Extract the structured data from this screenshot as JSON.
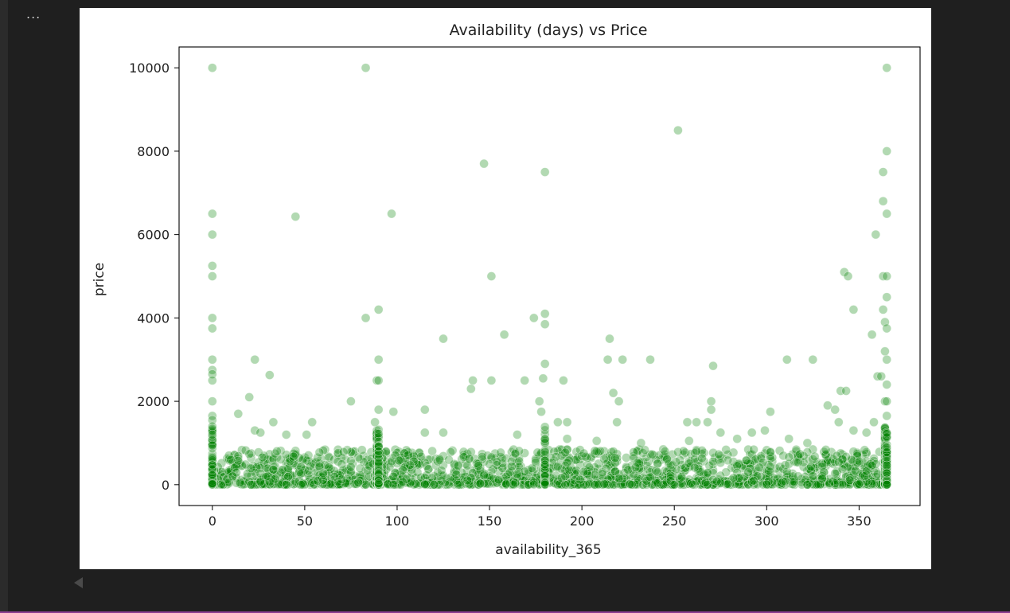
{
  "toolbar": {
    "more_label": "..."
  },
  "colors": {
    "marker": "#008000",
    "axis": "#000000",
    "panel_bg": "#ffffff",
    "app_bg": "#1f1f1f"
  },
  "chart_data": {
    "type": "scatter",
    "title": "Availability (days) vs Price",
    "xlabel": "availability_365",
    "ylabel": "price",
    "xlim": [
      -18,
      383
    ],
    "ylim": [
      -500,
      10500
    ],
    "xticks": [
      0,
      50,
      100,
      150,
      200,
      250,
      300,
      350
    ],
    "yticks": [
      0,
      2000,
      4000,
      6000,
      8000,
      10000
    ],
    "marker_color": "#008000",
    "marker_alpha": 0.3,
    "grid": false,
    "legend": "none",
    "outliers": [
      {
        "x": 0,
        "y": 10000
      },
      {
        "x": 83,
        "y": 10000
      },
      {
        "x": 365,
        "y": 10000
      },
      {
        "x": 252,
        "y": 8500
      },
      {
        "x": 365,
        "y": 8000
      },
      {
        "x": 147,
        "y": 7700
      },
      {
        "x": 180,
        "y": 7500
      },
      {
        "x": 363,
        "y": 7500
      },
      {
        "x": 363,
        "y": 6800
      },
      {
        "x": 0,
        "y": 6500
      },
      {
        "x": 97,
        "y": 6500
      },
      {
        "x": 365,
        "y": 6500
      },
      {
        "x": 45,
        "y": 6430
      },
      {
        "x": 0,
        "y": 6000
      },
      {
        "x": 359,
        "y": 6000
      },
      {
        "x": 0,
        "y": 5250
      },
      {
        "x": 0,
        "y": 5000
      },
      {
        "x": 151,
        "y": 5000
      },
      {
        "x": 342,
        "y": 5100
      },
      {
        "x": 344,
        "y": 5000
      },
      {
        "x": 363,
        "y": 5000
      },
      {
        "x": 365,
        "y": 5000
      },
      {
        "x": 365,
        "y": 4500
      },
      {
        "x": 90,
        "y": 4200
      },
      {
        "x": 347,
        "y": 4200
      },
      {
        "x": 363,
        "y": 4200
      },
      {
        "x": 0,
        "y": 4000
      },
      {
        "x": 83,
        "y": 4000
      },
      {
        "x": 174,
        "y": 4000
      },
      {
        "x": 180,
        "y": 4100
      },
      {
        "x": 180,
        "y": 3850
      },
      {
        "x": 364,
        "y": 3900
      },
      {
        "x": 0,
        "y": 3750
      },
      {
        "x": 365,
        "y": 3750
      },
      {
        "x": 158,
        "y": 3600
      },
      {
        "x": 357,
        "y": 3600
      },
      {
        "x": 125,
        "y": 3500
      },
      {
        "x": 215,
        "y": 3500
      },
      {
        "x": 0,
        "y": 3000
      },
      {
        "x": 23,
        "y": 3000
      },
      {
        "x": 90,
        "y": 3000
      },
      {
        "x": 214,
        "y": 3000
      },
      {
        "x": 222,
        "y": 3000
      },
      {
        "x": 237,
        "y": 3000
      },
      {
        "x": 311,
        "y": 3000
      },
      {
        "x": 325,
        "y": 3000
      },
      {
        "x": 365,
        "y": 3000
      },
      {
        "x": 364,
        "y": 3200
      },
      {
        "x": 180,
        "y": 2900
      },
      {
        "x": 271,
        "y": 2850
      },
      {
        "x": 0,
        "y": 2750
      },
      {
        "x": 0,
        "y": 2650
      },
      {
        "x": 31,
        "y": 2630
      },
      {
        "x": 360,
        "y": 2600
      },
      {
        "x": 362,
        "y": 2600
      },
      {
        "x": 0,
        "y": 2500
      },
      {
        "x": 89,
        "y": 2500
      },
      {
        "x": 90,
        "y": 2500
      },
      {
        "x": 141,
        "y": 2500
      },
      {
        "x": 151,
        "y": 2500
      },
      {
        "x": 169,
        "y": 2500
      },
      {
        "x": 179,
        "y": 2550
      },
      {
        "x": 190,
        "y": 2500
      },
      {
        "x": 365,
        "y": 2400
      },
      {
        "x": 140,
        "y": 2300
      },
      {
        "x": 340,
        "y": 2250
      },
      {
        "x": 343,
        "y": 2250
      },
      {
        "x": 217,
        "y": 2200
      },
      {
        "x": 20,
        "y": 2100
      },
      {
        "x": 0,
        "y": 2000
      },
      {
        "x": 75,
        "y": 2000
      },
      {
        "x": 177,
        "y": 2000
      },
      {
        "x": 220,
        "y": 2000
      },
      {
        "x": 270,
        "y": 2000
      },
      {
        "x": 364,
        "y": 2000
      },
      {
        "x": 365,
        "y": 2000
      },
      {
        "x": 333,
        "y": 1900
      },
      {
        "x": 115,
        "y": 1800
      },
      {
        "x": 90,
        "y": 1800
      },
      {
        "x": 270,
        "y": 1800
      },
      {
        "x": 337,
        "y": 1800
      },
      {
        "x": 98,
        "y": 1750
      },
      {
        "x": 178,
        "y": 1750
      },
      {
        "x": 302,
        "y": 1750
      },
      {
        "x": 14,
        "y": 1700
      },
      {
        "x": 0,
        "y": 1650
      },
      {
        "x": 365,
        "y": 1650
      },
      {
        "x": 0,
        "y": 1550
      },
      {
        "x": 54,
        "y": 1500
      },
      {
        "x": 33,
        "y": 1500
      },
      {
        "x": 88,
        "y": 1500
      },
      {
        "x": 187,
        "y": 1500
      },
      {
        "x": 192,
        "y": 1500
      },
      {
        "x": 219,
        "y": 1500
      },
      {
        "x": 257,
        "y": 1500
      },
      {
        "x": 262,
        "y": 1500
      },
      {
        "x": 268,
        "y": 1500
      },
      {
        "x": 339,
        "y": 1500
      },
      {
        "x": 358,
        "y": 1500
      },
      {
        "x": 0,
        "y": 1400
      },
      {
        "x": 23,
        "y": 1300
      },
      {
        "x": 115,
        "y": 1250
      },
      {
        "x": 125,
        "y": 1250
      },
      {
        "x": 165,
        "y": 1200
      },
      {
        "x": 192,
        "y": 1100
      },
      {
        "x": 208,
        "y": 1050
      },
      {
        "x": 275,
        "y": 1250
      },
      {
        "x": 292,
        "y": 1250
      },
      {
        "x": 299,
        "y": 1300
      },
      {
        "x": 312,
        "y": 1100
      },
      {
        "x": 347,
        "y": 1300
      },
      {
        "x": 0,
        "y": 1200
      },
      {
        "x": 40,
        "y": 1200
      },
      {
        "x": 51,
        "y": 1200
      },
      {
        "x": 26,
        "y": 1250
      },
      {
        "x": 232,
        "y": 1000
      },
      {
        "x": 258,
        "y": 1050
      },
      {
        "x": 284,
        "y": 1100
      },
      {
        "x": 322,
        "y": 1000
      },
      {
        "x": 354,
        "y": 1250
      }
    ],
    "cluster": {
      "description_count": 1800,
      "x_range": [
        0,
        365
      ],
      "y_core_max": 850,
      "dense_columns": [
        0,
        89,
        90,
        180,
        364,
        365
      ]
    }
  }
}
